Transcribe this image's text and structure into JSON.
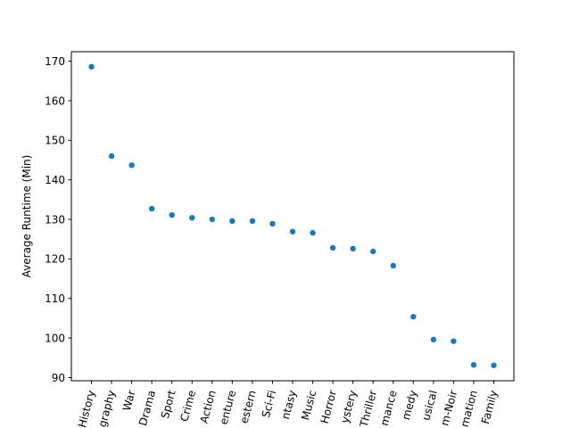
{
  "chart_data": {
    "type": "scatter",
    "title": "",
    "xlabel": "",
    "ylabel": "Average Runtime (Min)",
    "categories": [
      "History",
      "Biography",
      "War",
      "Drama",
      "Sport",
      "Crime",
      "Action",
      "Adventure",
      "Western",
      "Sci-Fi",
      "Fantasy",
      "Music",
      "Horror",
      "Mystery",
      "Thriller",
      "Romance",
      "Comedy",
      "Musical",
      "Film-Noir",
      "Animation",
      "Family"
    ],
    "tick_labels_visible": [
      "History",
      "graphy",
      "War",
      "Drama",
      "Sport",
      "Crime",
      "Action",
      "enture",
      "estern",
      "Sci-Fi",
      "ntasy",
      "Music",
      "Horror",
      "ystery",
      "Thriller",
      "mance",
      "medy",
      "usical",
      "m-Noir",
      "mation",
      "Family"
    ],
    "values": [
      168.6,
      146.0,
      143.7,
      132.7,
      131.1,
      130.4,
      130.0,
      129.6,
      129.6,
      128.9,
      126.9,
      126.6,
      122.8,
      122.6,
      121.9,
      118.3,
      105.4,
      99.6,
      99.2,
      93.2,
      93.1
    ],
    "ylim": [
      89.2,
      172.4
    ],
    "yticks": [
      90,
      100,
      110,
      120,
      130,
      140,
      150,
      160,
      170
    ],
    "marker_color": "#1f77b4",
    "grid": false,
    "legend": "none"
  }
}
